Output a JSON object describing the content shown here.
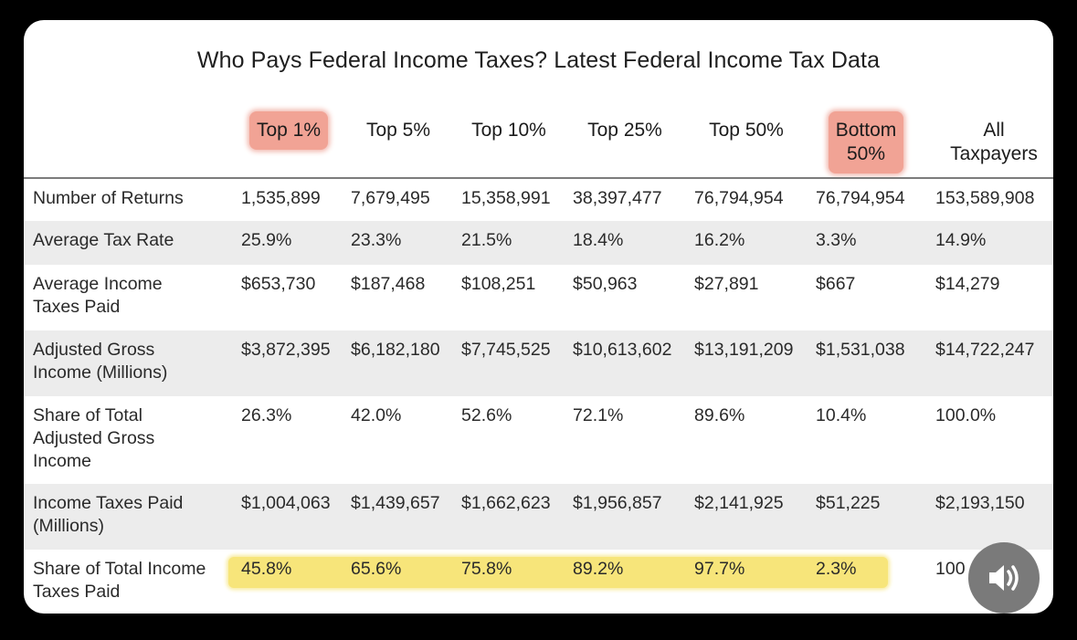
{
  "title": "Who Pays Federal Income Taxes? Latest Federal Income Tax Data",
  "columns": [
    {
      "line1": "Top 1%",
      "line2": ""
    },
    {
      "line1": "Top 5%",
      "line2": ""
    },
    {
      "line1": "Top 10%",
      "line2": ""
    },
    {
      "line1": "Top 25%",
      "line2": ""
    },
    {
      "line1": "Top 50%",
      "line2": ""
    },
    {
      "line1": "Bottom",
      "line2": "50%"
    },
    {
      "line1": "All",
      "line2": "Taxpayers"
    }
  ],
  "rows": [
    {
      "label": [
        "Number of Returns"
      ],
      "values": [
        "1,535,899",
        "7,679,495",
        "15,358,991",
        "38,397,477",
        "76,794,954",
        "76,794,954",
        "153,589,908"
      ]
    },
    {
      "label": [
        "Average Tax Rate"
      ],
      "values": [
        "25.9%",
        "23.3%",
        "21.5%",
        "18.4%",
        "16.2%",
        "3.3%",
        "14.9%"
      ]
    },
    {
      "label": [
        "Average Income",
        "Taxes Paid"
      ],
      "values": [
        "$653,730",
        "$187,468",
        "$108,251",
        "$50,963",
        "$27,891",
        "$667",
        "$14,279"
      ]
    },
    {
      "label": [
        "Adjusted Gross",
        "Income (Millions)"
      ],
      "values": [
        "$3,872,395",
        "$6,182,180",
        "$7,745,525",
        "$10,613,602",
        "$13,191,209",
        "$1,531,038",
        "$14,722,247"
      ]
    },
    {
      "label": [
        "Share of Total",
        "Adjusted Gross",
        "Income"
      ],
      "values": [
        "26.3%",
        "42.0%",
        "52.6%",
        "72.1%",
        "89.6%",
        "10.4%",
        "100.0%"
      ]
    },
    {
      "label": [
        "Income Taxes Paid",
        "(Millions)"
      ],
      "values": [
        "$1,004,063",
        "$1,439,657",
        "$1,662,623",
        "$1,956,857",
        "$2,141,925",
        "$51,225",
        "$2,193,150"
      ]
    },
    {
      "label": [
        "Share of Total Income",
        "Taxes Paid"
      ],
      "values": [
        "45.8%",
        "65.6%",
        "75.8%",
        "89.2%",
        "97.7%",
        "2.3%",
        "100"
      ]
    }
  ],
  "colors": {
    "highlight_header": "#f1a395",
    "highlight_row": "#f7e57a",
    "row_shade": "#ececec"
  },
  "icons": {
    "sound": "speaker-volume-icon"
  }
}
